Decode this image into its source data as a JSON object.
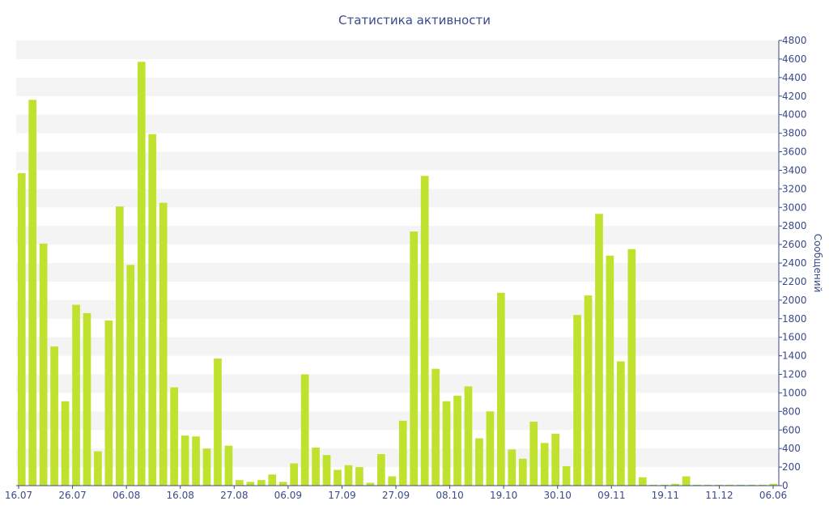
{
  "chart_data": {
    "type": "bar",
    "title": "Статистика активности",
    "ylabel": "Сообщений",
    "ylim": [
      0,
      4800
    ],
    "y_ticks": [
      "0",
      "200",
      "400",
      "600",
      "800",
      "1000",
      "1200",
      "1400",
      "1600",
      "1800",
      "2000",
      "2200",
      "2400",
      "2600",
      "2800",
      "3000",
      "3200",
      "3400",
      "3600",
      "3800",
      "4000",
      "4200",
      "4400",
      "4600",
      "4800"
    ],
    "x_tick_labels": [
      "16.07",
      "26.07",
      "06.08",
      "16.08",
      "27.08",
      "06.09",
      "17.09",
      "27.09",
      "08.10",
      "19.10",
      "30.10",
      "09.11",
      "19.11",
      "11.12",
      "06.06"
    ],
    "grid": "horizontal bands",
    "y_axis_position": "right",
    "colors": {
      "bar": "#bfe22e",
      "band": "#f4f4f4",
      "text": "#3a4a8a",
      "axis": "#3a4a8a"
    },
    "values": [
      3370,
      4160,
      2610,
      1500,
      910,
      1950,
      1860,
      370,
      1780,
      3010,
      2380,
      4570,
      3790,
      3050,
      1060,
      540,
      530,
      400,
      1370,
      430,
      60,
      40,
      60,
      120,
      40,
      240,
      1200,
      410,
      330,
      170,
      220,
      200,
      30,
      340,
      100,
      700,
      2740,
      3340,
      1260,
      910,
      970,
      1070,
      510,
      800,
      2080,
      390,
      290,
      690,
      460,
      560,
      210,
      1840,
      2050,
      2930,
      2480,
      1340,
      2550,
      90,
      10,
      10,
      20,
      100,
      10,
      10,
      10,
      10,
      10,
      10,
      10,
      20
    ]
  }
}
